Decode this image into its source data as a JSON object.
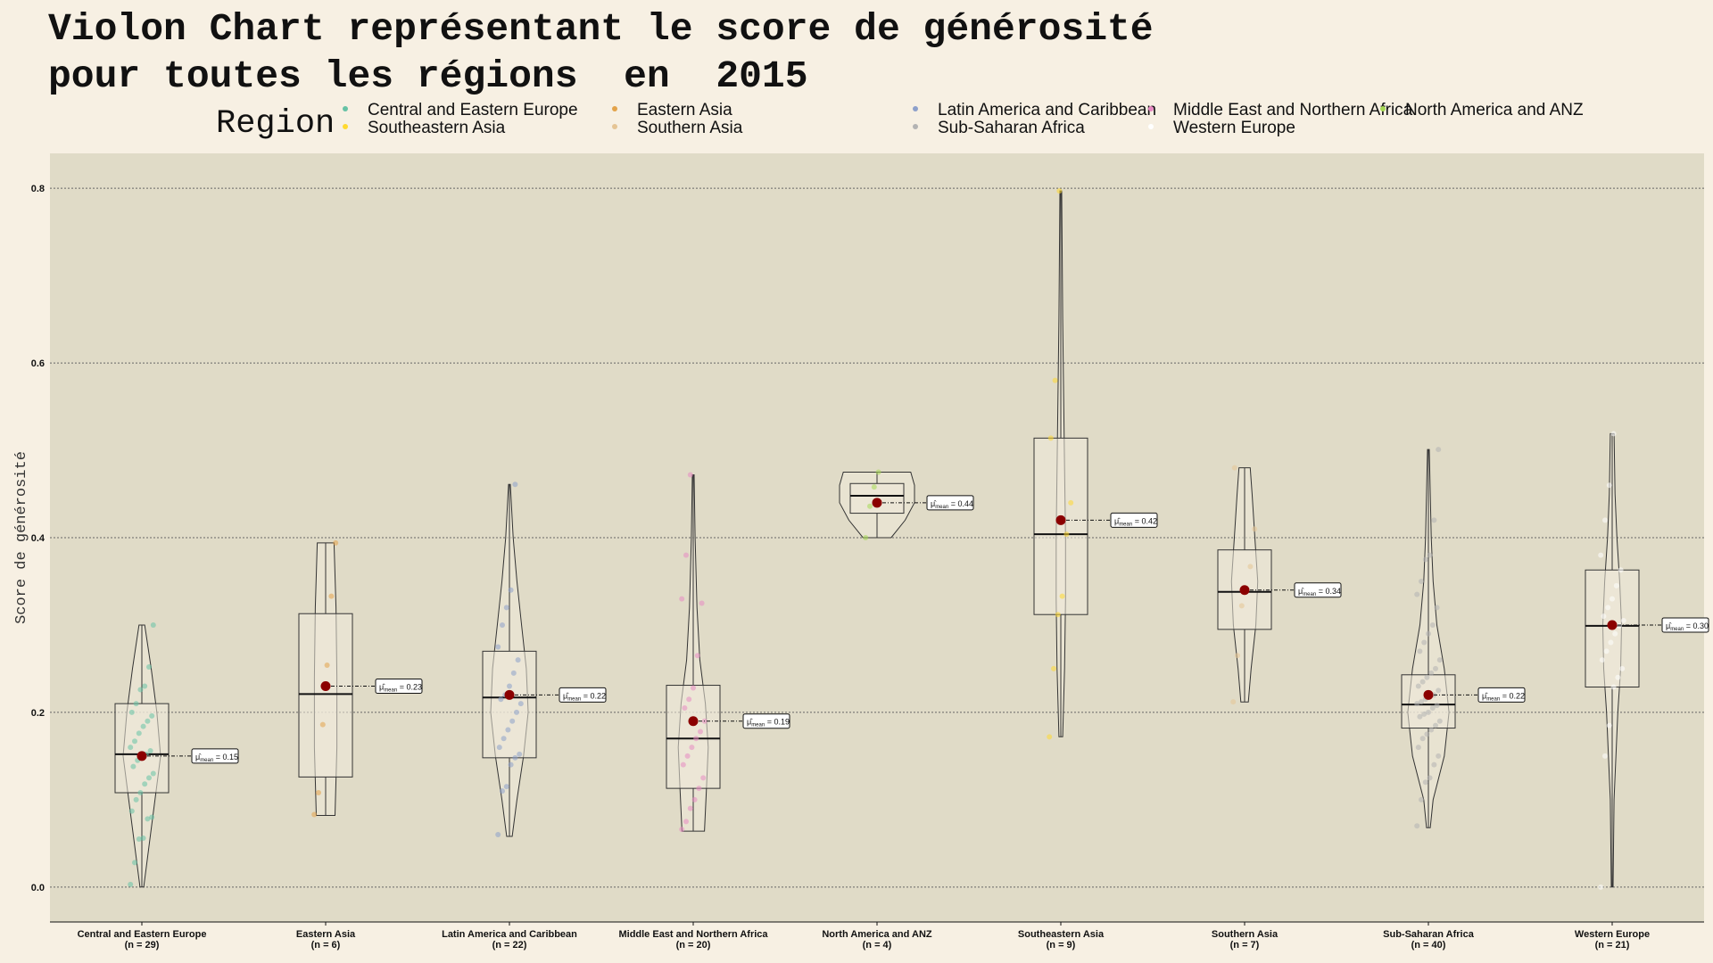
{
  "chart_data": {
    "type": "violin",
    "title_lines": [
      "Violon Chart représentant le score de générosité",
      "pour toutes les régions  en  2015"
    ],
    "xlabel": "",
    "ylabel": "Score de générosité",
    "ylim": [
      -0.04,
      0.84
    ],
    "yticks": [
      0.0,
      0.2,
      0.4,
      0.6,
      0.8
    ],
    "ytick_labels": [
      "0.0",
      "0.2",
      "0.4",
      "0.6",
      "0.8"
    ],
    "grid": true,
    "legend_title": "Region",
    "legend_placement": "top",
    "groups": [
      {
        "name": "Central and Eastern Europe",
        "n_label": "(n = 29)",
        "color": "#66c2a5",
        "min": 0.0,
        "q1": 0.108,
        "median": 0.152,
        "q3": 0.21,
        "max": 0.3,
        "mean": 0.15,
        "mean_label": "0.15",
        "violin": [
          [
            0.0,
            0.002
          ],
          [
            0.05,
            0.008
          ],
          [
            0.1,
            0.014
          ],
          [
            0.15,
            0.02
          ],
          [
            0.2,
            0.016
          ],
          [
            0.25,
            0.01
          ],
          [
            0.3,
            0.003
          ]
        ],
        "points": [
          0.003,
          0.028,
          0.055,
          0.056,
          0.078,
          0.08,
          0.087,
          0.1,
          0.108,
          0.118,
          0.125,
          0.13,
          0.138,
          0.145,
          0.15,
          0.152,
          0.156,
          0.16,
          0.167,
          0.176,
          0.184,
          0.19,
          0.196,
          0.2,
          0.21,
          0.226,
          0.23,
          0.252,
          0.3
        ]
      },
      {
        "name": "Eastern Asia",
        "n_label": "(n = 6)",
        "color": "#e3a34a",
        "min": 0.082,
        "q1": 0.126,
        "median": 0.221,
        "q3": 0.313,
        "max": 0.394,
        "mean": 0.23,
        "mean_label": "0.23",
        "violin": [
          [
            0.082,
            0.01
          ],
          [
            0.16,
            0.012
          ],
          [
            0.24,
            0.012
          ],
          [
            0.32,
            0.011
          ],
          [
            0.394,
            0.009
          ]
        ],
        "points": [
          0.083,
          0.108,
          0.186,
          0.254,
          0.333,
          0.394
        ]
      },
      {
        "name": "Latin America and Caribbean",
        "n_label": "(n = 22)",
        "color": "#8da0cb",
        "min": 0.058,
        "q1": 0.148,
        "median": 0.217,
        "q3": 0.27,
        "max": 0.461,
        "mean": 0.22,
        "mean_label": "0.22",
        "violin": [
          [
            0.058,
            0.003
          ],
          [
            0.1,
            0.008
          ],
          [
            0.15,
            0.015
          ],
          [
            0.2,
            0.02
          ],
          [
            0.25,
            0.018
          ],
          [
            0.3,
            0.013
          ],
          [
            0.35,
            0.008
          ],
          [
            0.4,
            0.004
          ],
          [
            0.461,
            0.001
          ]
        ],
        "points": [
          0.06,
          0.11,
          0.115,
          0.14,
          0.148,
          0.152,
          0.16,
          0.17,
          0.18,
          0.19,
          0.2,
          0.21,
          0.215,
          0.22,
          0.23,
          0.245,
          0.26,
          0.275,
          0.3,
          0.32,
          0.34,
          0.461
        ]
      },
      {
        "name": "Middle East and Northern Africa",
        "n_label": "(n = 20)",
        "color": "#e78ac3",
        "min": 0.064,
        "q1": 0.113,
        "median": 0.17,
        "q3": 0.231,
        "max": 0.472,
        "mean": 0.19,
        "mean_label": "0.19",
        "violin": [
          [
            0.064,
            0.012
          ],
          [
            0.11,
            0.014
          ],
          [
            0.16,
            0.016
          ],
          [
            0.21,
            0.013
          ],
          [
            0.26,
            0.007
          ],
          [
            0.32,
            0.004
          ],
          [
            0.4,
            0.002
          ],
          [
            0.472,
            0.001
          ]
        ],
        "points": [
          0.066,
          0.075,
          0.09,
          0.1,
          0.113,
          0.125,
          0.14,
          0.15,
          0.16,
          0.17,
          0.178,
          0.19,
          0.205,
          0.215,
          0.228,
          0.265,
          0.325,
          0.33,
          0.38,
          0.472
        ]
      },
      {
        "name": "North America and ANZ",
        "n_label": "(n = 4)",
        "color": "#a6d854",
        "min": 0.4,
        "q1": 0.428,
        "median": 0.448,
        "q3": 0.462,
        "max": 0.475,
        "mean": 0.44,
        "mean_label": "0.44",
        "violin": [
          [
            0.4,
            0.015
          ],
          [
            0.42,
            0.03
          ],
          [
            0.44,
            0.04
          ],
          [
            0.46,
            0.04
          ],
          [
            0.475,
            0.036
          ]
        ],
        "points": [
          0.4,
          0.436,
          0.458,
          0.475
        ]
      },
      {
        "name": "Southeastern Asia",
        "n_label": "(n = 9)",
        "color": "#ffd92f",
        "min": 0.172,
        "q1": 0.312,
        "median": 0.404,
        "q3": 0.514,
        "max": 0.797,
        "mean": 0.42,
        "mean_label": "0.42",
        "violin": [
          [
            0.172,
            0.002
          ],
          [
            0.25,
            0.004
          ],
          [
            0.33,
            0.005
          ],
          [
            0.4,
            0.005
          ],
          [
            0.48,
            0.004
          ],
          [
            0.56,
            0.003
          ],
          [
            0.65,
            0.002
          ],
          [
            0.797,
            0.001
          ]
        ],
        "points": [
          0.172,
          0.25,
          0.312,
          0.333,
          0.404,
          0.44,
          0.514,
          0.58,
          0.797
        ]
      },
      {
        "name": "Southern Asia",
        "n_label": "(n = 7)",
        "color": "#e5c494",
        "min": 0.212,
        "q1": 0.295,
        "median": 0.338,
        "q3": 0.386,
        "max": 0.48,
        "mean": 0.34,
        "mean_label": "0.34",
        "violin": [
          [
            0.212,
            0.004
          ],
          [
            0.25,
            0.007
          ],
          [
            0.3,
            0.012
          ],
          [
            0.35,
            0.014
          ],
          [
            0.4,
            0.011
          ],
          [
            0.45,
            0.008
          ],
          [
            0.48,
            0.006
          ]
        ],
        "points": [
          0.212,
          0.265,
          0.322,
          0.338,
          0.367,
          0.41,
          0.48
        ]
      },
      {
        "name": "Sub-Saharan Africa",
        "n_label": "(n = 40)",
        "color": "#b3b3b3",
        "min": 0.068,
        "q1": 0.182,
        "median": 0.209,
        "q3": 0.243,
        "max": 0.501,
        "mean": 0.22,
        "mean_label": "0.22",
        "violin": [
          [
            0.068,
            0.002
          ],
          [
            0.1,
            0.005
          ],
          [
            0.15,
            0.017
          ],
          [
            0.2,
            0.022
          ],
          [
            0.25,
            0.017
          ],
          [
            0.3,
            0.009
          ],
          [
            0.35,
            0.005
          ],
          [
            0.4,
            0.003
          ],
          [
            0.45,
            0.002
          ],
          [
            0.501,
            0.001
          ]
        ],
        "points": [
          0.07,
          0.1,
          0.12,
          0.125,
          0.14,
          0.15,
          0.16,
          0.17,
          0.175,
          0.18,
          0.185,
          0.19,
          0.195,
          0.198,
          0.2,
          0.205,
          0.208,
          0.21,
          0.212,
          0.215,
          0.218,
          0.22,
          0.225,
          0.23,
          0.235,
          0.24,
          0.245,
          0.25,
          0.26,
          0.27,
          0.28,
          0.29,
          0.3,
          0.32,
          0.335,
          0.35,
          0.375,
          0.38,
          0.42,
          0.501
        ]
      },
      {
        "name": "Western Europe",
        "n_label": "(n = 21)",
        "color": "#ffffff",
        "min": 0.0,
        "q1": 0.229,
        "median": 0.299,
        "q3": 0.363,
        "max": 0.519,
        "mean": 0.3,
        "mean_label": "0.30",
        "violin": [
          [
            0.0,
            0.001
          ],
          [
            0.1,
            0.002
          ],
          [
            0.2,
            0.006
          ],
          [
            0.25,
            0.009
          ],
          [
            0.3,
            0.01
          ],
          [
            0.35,
            0.008
          ],
          [
            0.4,
            0.005
          ],
          [
            0.45,
            0.003
          ],
          [
            0.519,
            0.002
          ]
        ],
        "points": [
          0.0,
          0.15,
          0.185,
          0.229,
          0.24,
          0.25,
          0.26,
          0.27,
          0.28,
          0.29,
          0.299,
          0.305,
          0.31,
          0.32,
          0.33,
          0.345,
          0.363,
          0.38,
          0.42,
          0.46,
          0.519
        ]
      }
    ],
    "legend": [
      {
        "label": "Central and Eastern Europe",
        "color": "#66c2a5"
      },
      {
        "label": "Eastern Asia",
        "color": "#e3a34a"
      },
      {
        "label": "Latin America and Caribbean",
        "color": "#8da0cb"
      },
      {
        "label": "Middle East and Northern Africa",
        "color": "#e78ac3"
      },
      {
        "label": "North America and ANZ",
        "color": "#a6d854"
      },
      {
        "label": "Southeastern Asia",
        "color": "#ffd92f"
      },
      {
        "label": "Southern Asia",
        "color": "#e5c494"
      },
      {
        "label": "Sub-Saharan Africa",
        "color": "#b3b3b3"
      },
      {
        "label": "Western Europe",
        "color": "#ffffff"
      }
    ],
    "mean_marker_color": "#8b0000",
    "panel_color": "#e0dbc7",
    "background_color": "#f7f0e3"
  }
}
